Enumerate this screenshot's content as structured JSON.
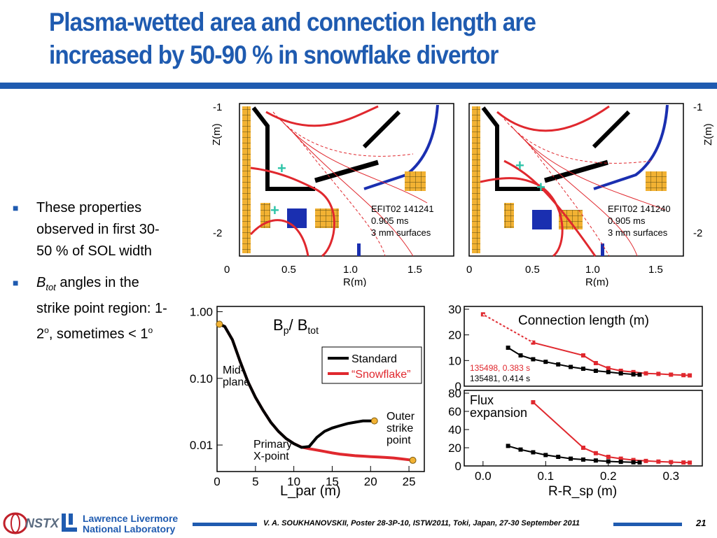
{
  "slide": {
    "title": "Plasma-wetted area and connection length are increased by 50-90 % in snowflake divertor",
    "page_number": "21"
  },
  "bullets": [
    {
      "text": "These properties observed in first 30-50 % of SOL width"
    },
    {
      "sym": "B",
      "sub": "tot",
      "text": " angles in the strike point region: 1-2",
      "sup1": "o",
      "mid": ", sometimes < 1",
      "sup2": "o"
    }
  ],
  "equilibria": {
    "left": {
      "label_1": "EFIT02 141241",
      "label_2": "0.905 ms",
      "label_3": "3 mm surfaces"
    },
    "right": {
      "label_1": "EFIT02 141240",
      "label_2": "0.905 ms",
      "label_3": "3 mm surfaces"
    },
    "z_axis_label": "Z(m)",
    "z_ticks": [
      "-1",
      "-2"
    ],
    "r_axis_label": "R(m)",
    "r_ticks": [
      "0",
      "0.5",
      "1.0",
      "1.5"
    ]
  },
  "footer": {
    "nstx_logo": "NSTX",
    "llnl_line1": "Lawrence Livermore",
    "llnl_line2": "National Laboratory",
    "citation": "V. A. SOUKHANOVSKII, Poster 28-3P-10, ISTW2011, Toki, Japan, 27-30 September 2011"
  },
  "colors": {
    "brand_blue": "#1f5bb0",
    "standard": "#000000",
    "snowflake": "#e0282e",
    "marker": "#f2b233"
  },
  "chart_data": [
    {
      "type": "line",
      "title_main": "B",
      "title_sub1": "p",
      "title_mid": "/ B",
      "title_sub2": "tot",
      "xlabel": "L_par (m)",
      "ylabel": "",
      "xlim": [
        0,
        27
      ],
      "ylim": [
        0.004,
        1.2
      ],
      "yscale": "log",
      "x_ticks": [
        "0",
        "5",
        "10",
        "15",
        "20",
        "25"
      ],
      "y_ticks": [
        "1.00",
        "0.10",
        "0.01"
      ],
      "legend": [
        "Standard",
        "“Snowflake”"
      ],
      "legend_position": "right",
      "annotations": {
        "midplane_1": "Mid-",
        "midplane_2": "plane",
        "xpoint_1": "Primary",
        "xpoint_2": "X-point",
        "strike_1": "Outer",
        "strike_2": "strike",
        "strike_3": "point"
      },
      "series": [
        {
          "name": "Standard",
          "x": [
            0.3,
            1,
            2,
            3,
            4,
            5,
            6,
            7,
            8,
            9,
            10,
            11,
            12,
            13,
            14,
            15,
            16,
            17,
            18,
            19,
            20,
            20.5
          ],
          "y": [
            0.65,
            0.6,
            0.38,
            0.18,
            0.09,
            0.052,
            0.033,
            0.022,
            0.016,
            0.0125,
            0.0105,
            0.0092,
            0.0095,
            0.013,
            0.016,
            0.018,
            0.0195,
            0.021,
            0.022,
            0.023,
            0.023,
            0.023
          ]
        },
        {
          "name": "“Snowflake”",
          "x": [
            0.3,
            1,
            2,
            3,
            4,
            5,
            6,
            7,
            8,
            9,
            10,
            11,
            12,
            13,
            14,
            15,
            16,
            17,
            18,
            19,
            20,
            21,
            22,
            23,
            24,
            25,
            25.5
          ],
          "y": [
            0.65,
            0.6,
            0.38,
            0.18,
            0.09,
            0.052,
            0.033,
            0.022,
            0.016,
            0.0125,
            0.0105,
            0.0093,
            0.0088,
            0.0084,
            0.008,
            0.0076,
            0.0073,
            0.0071,
            0.0069,
            0.0068,
            0.0067,
            0.0066,
            0.0065,
            0.0064,
            0.0062,
            0.006,
            0.0059
          ]
        }
      ]
    },
    {
      "type": "line",
      "title": "Connection length (m)",
      "xlim": [
        -0.03,
        0.35
      ],
      "ylim": [
        0,
        30
      ],
      "y_ticks": [
        "30",
        "20",
        "10",
        "0"
      ],
      "series": [
        {
          "name": "135498, 0.383 s",
          "x": [
            0.0,
            0.08,
            0.16,
            0.18,
            0.2,
            0.22,
            0.24,
            0.26,
            0.28,
            0.3,
            0.32,
            0.33
          ],
          "y": [
            28,
            17,
            12,
            9,
            7,
            6,
            5.5,
            5,
            4.8,
            4.5,
            4.3,
            4.2
          ]
        },
        {
          "name": "135481, 0.414 s",
          "x": [
            0.04,
            0.06,
            0.08,
            0.1,
            0.12,
            0.14,
            0.16,
            0.18,
            0.2,
            0.22,
            0.24,
            0.25
          ],
          "y": [
            15,
            12,
            10.5,
            9.5,
            8.5,
            7.5,
            6.8,
            6,
            5.5,
            5,
            4.6,
            4.5
          ]
        }
      ]
    },
    {
      "type": "line",
      "title_1": "Flux",
      "title_2": "expansion",
      "xlabel": "R-R_sp (m)",
      "xlim": [
        -0.03,
        0.35
      ],
      "ylim": [
        0,
        80
      ],
      "x_ticks": [
        "0.0",
        "0.1",
        "0.2",
        "0.3"
      ],
      "y_ticks": [
        "80",
        "60",
        "40",
        "20",
        "0"
      ],
      "series": [
        {
          "name": "135498, 0.383 s",
          "x": [
            0.08,
            0.16,
            0.18,
            0.2,
            0.22,
            0.24,
            0.26,
            0.28,
            0.3,
            0.32,
            0.33
          ],
          "y": [
            70,
            20,
            14,
            10,
            8,
            6.5,
            5.5,
            4.8,
            4.2,
            3.8,
            3.6
          ]
        },
        {
          "name": "135481, 0.414 s",
          "x": [
            0.04,
            0.06,
            0.08,
            0.1,
            0.12,
            0.14,
            0.16,
            0.18,
            0.2,
            0.22,
            0.24,
            0.25
          ],
          "y": [
            22,
            18,
            15,
            12,
            10,
            8,
            7,
            6,
            5,
            4.5,
            4,
            3.8
          ]
        }
      ]
    }
  ]
}
